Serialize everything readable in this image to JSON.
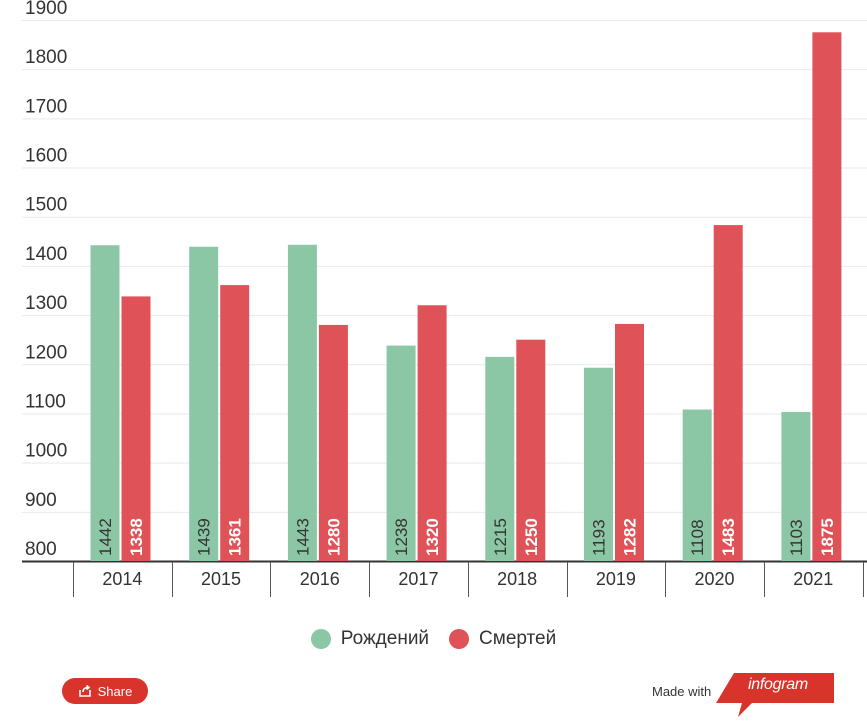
{
  "chart_data": {
    "type": "bar",
    "categories": [
      "2014",
      "2015",
      "2016",
      "2017",
      "2018",
      "2019",
      "2020",
      "2021"
    ],
    "series": [
      {
        "name": "Рождений",
        "values": [
          1442,
          1439,
          1443,
          1238,
          1215,
          1193,
          1108,
          1103
        ],
        "color": "#8cc7a5"
      },
      {
        "name": "Смертей",
        "values": [
          1338,
          1361,
          1280,
          1320,
          1250,
          1282,
          1483,
          1875
        ],
        "color": "#df5257"
      }
    ],
    "ylim": [
      800,
      1900
    ],
    "yticks": [
      "800",
      "900",
      "1000",
      "1100",
      "1200",
      "1300",
      "1400",
      "1500",
      "1600",
      "1700",
      "1800",
      "1900"
    ],
    "grid": true,
    "legend": "bottom-center",
    "title": "",
    "xlabel": "",
    "ylabel": ""
  },
  "footer": {
    "share_label": "Share",
    "made_with_label": "Made with",
    "brand_label": "infogram",
    "share_color": "#d9342b",
    "brand_color": "#d9342b"
  }
}
